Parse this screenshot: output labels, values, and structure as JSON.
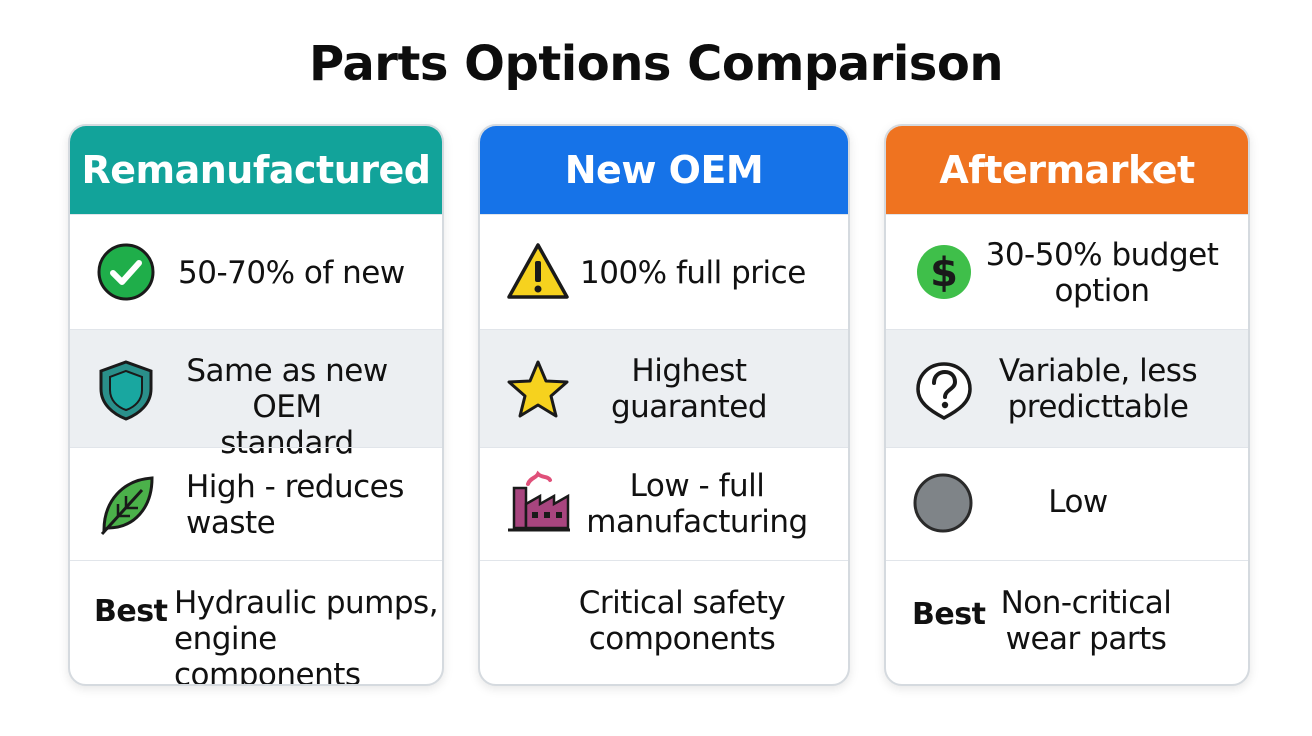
{
  "title": "Parts Options Comparison",
  "colors": {
    "remanufactured": "#12a39a",
    "new_oem": "#1673e8",
    "aftermarket": "#ef7320"
  },
  "columns": [
    {
      "header": "Remanufactured",
      "rows": [
        {
          "icon": "check-circle-icon",
          "text_lines": [
            "50-70% of new"
          ]
        },
        {
          "icon": "shield-icon",
          "text_lines": [
            "Same as new",
            "OEM standard"
          ]
        },
        {
          "icon": "leaf-icon",
          "text_lines": [
            "High - reduces",
            "waste"
          ]
        },
        {
          "prefix": "Best",
          "text_lines": [
            "Hydraulic pumps,",
            "engine components"
          ]
        }
      ]
    },
    {
      "header": "New OEM",
      "rows": [
        {
          "icon": "warning-icon",
          "text_lines": [
            "100% full price"
          ]
        },
        {
          "icon": "star-icon",
          "text_lines": [
            "Highest",
            "guaranted"
          ]
        },
        {
          "icon": "factory-icon",
          "text_lines": [
            "Low - full",
            "manufacturing"
          ]
        },
        {
          "text_lines": [
            "Critical safety",
            "components"
          ]
        }
      ]
    },
    {
      "header": "Aftermarket",
      "rows": [
        {
          "icon": "dollar-icon",
          "text_lines": [
            "30-50% budget",
            "option"
          ]
        },
        {
          "icon": "question-icon",
          "text_lines": [
            "Variable, less",
            "predicttable"
          ]
        },
        {
          "icon": "gray-circle-icon",
          "text_lines": [
            "Low"
          ]
        },
        {
          "prefix": "Best",
          "text_lines": [
            "Non-critical",
            "wear parts"
          ]
        }
      ]
    }
  ]
}
